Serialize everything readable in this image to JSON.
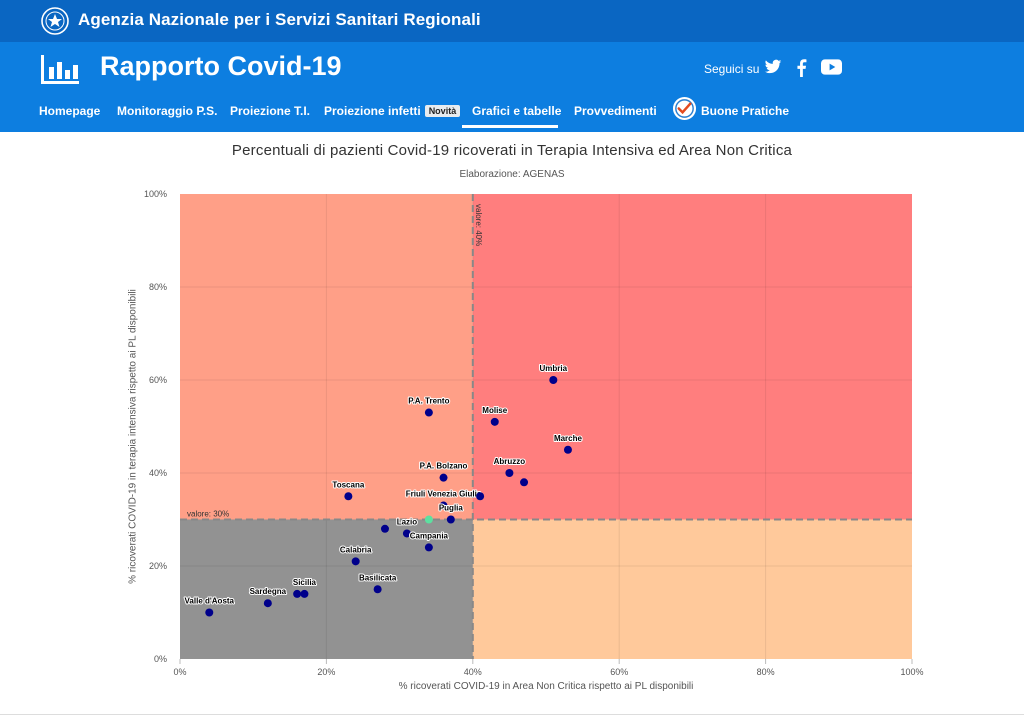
{
  "topbar": {
    "agency_name": "Agenzia Nazionale per i Servizi Sanitari Regionali"
  },
  "header": {
    "app_title": "Rapporto Covid-19",
    "follow_label": "Seguici su",
    "social": [
      "twitter-icon",
      "facebook-icon",
      "youtube-icon"
    ]
  },
  "nav": {
    "items": [
      "Homepage",
      "Monitoraggio P.S.",
      "Proiezione T.I.",
      "Proiezione infetti",
      "Grafici e tabelle",
      "Provvedimenti",
      "Buone Pratiche"
    ],
    "badge": "Novità",
    "active": "Grafici e tabelle"
  },
  "colors": {
    "topbar": "#0a66c2",
    "header": "#0d7ee0",
    "zone_high_both": "#ff7e7e",
    "zone_high_ti": "#ff9f87",
    "zone_high_anc": "#ffc99b",
    "zone_low": "#929292",
    "point": "#00008b",
    "point_highlight": "#5ce0a0"
  },
  "chart_data": {
    "type": "scatter",
    "title": "Percentuali di pazienti Covid-19 ricoverati in Terapia Intensiva ed Area Non Critica",
    "subtitle": "Elaborazione: AGENAS",
    "xlabel": "% ricoverati COVID-19 in Area Non Critica rispetto ai PL disponibili",
    "ylabel": "% ricoverati COVID-19 in terapia intensiva rispetto ai PL disponibili",
    "xlim": [
      0,
      100
    ],
    "ylim": [
      0,
      100
    ],
    "x_ticks": [
      "0%",
      "20%",
      "40%",
      "60%",
      "80%",
      "100%"
    ],
    "y_ticks": [
      "0%",
      "20%",
      "40%",
      "60%",
      "80%",
      "100%"
    ],
    "thresholds": {
      "x": 40,
      "y": 30,
      "x_label": "valore: 40%",
      "y_label": "valore: 30%"
    },
    "points": [
      {
        "name": "Umbria",
        "x": 51,
        "y": 60
      },
      {
        "name": "P.A. Trento",
        "x": 34,
        "y": 53
      },
      {
        "name": "Molise",
        "x": 43,
        "y": 51
      },
      {
        "name": "Marche",
        "x": 53,
        "y": 45
      },
      {
        "name": "Abruzzo",
        "x": 45,
        "y": 40
      },
      {
        "name": "",
        "x": 47,
        "y": 38
      },
      {
        "name": "P.A. Bolzano",
        "x": 36,
        "y": 39
      },
      {
        "name": "Toscana",
        "x": 23,
        "y": 35
      },
      {
        "name": "Friuli Venezia Giulia",
        "x": 36,
        "y": 33
      },
      {
        "name": "",
        "x": 41,
        "y": 35
      },
      {
        "name": "Puglia",
        "x": 37,
        "y": 30
      },
      {
        "name": "Lazio",
        "x": 31,
        "y": 27
      },
      {
        "name": "",
        "x": 28,
        "y": 28
      },
      {
        "name": "Campania",
        "x": 34,
        "y": 24
      },
      {
        "name": "Calabria",
        "x": 24,
        "y": 21
      },
      {
        "name": "Basilicata",
        "x": 27,
        "y": 15
      },
      {
        "name": "Sicilia",
        "x": 17,
        "y": 14
      },
      {
        "name": "",
        "x": 16,
        "y": 14
      },
      {
        "name": "Sardegna",
        "x": 12,
        "y": 12
      },
      {
        "name": "Valle d'Aosta",
        "x": 4,
        "y": 10
      },
      {
        "name": "",
        "x": 34,
        "y": 30,
        "highlight": true
      }
    ]
  }
}
